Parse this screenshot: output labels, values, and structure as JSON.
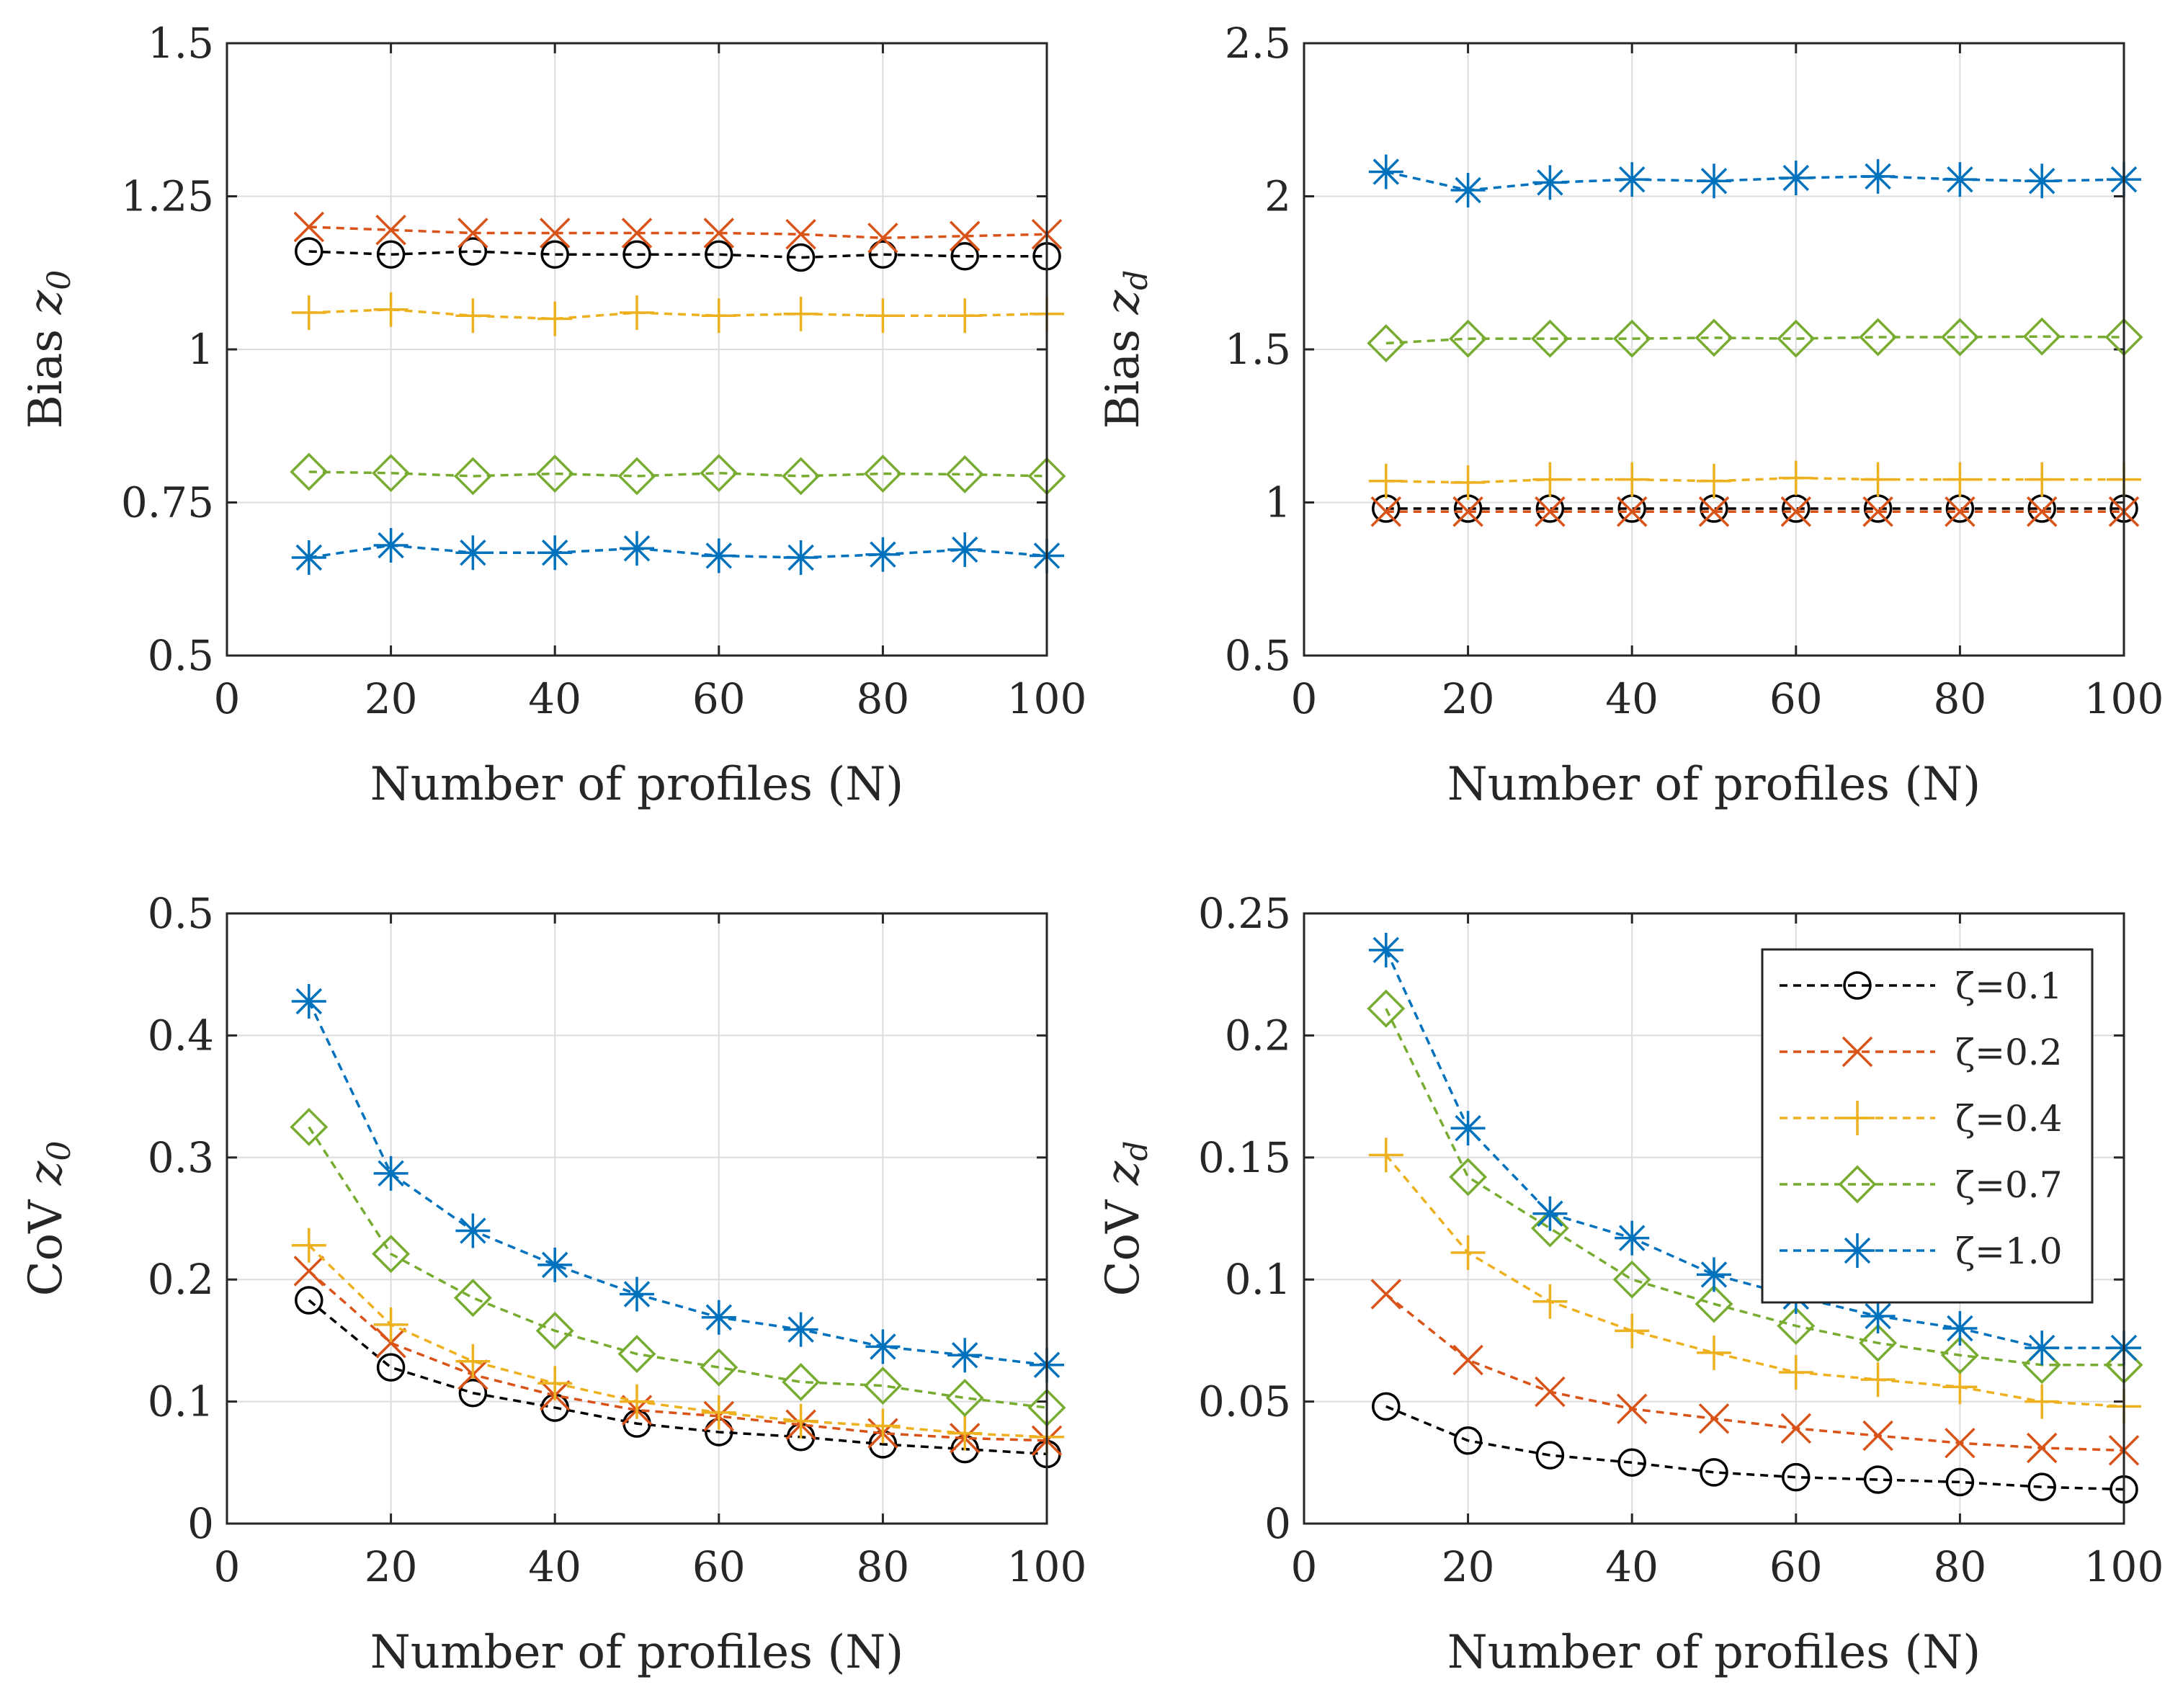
{
  "chart_data": [
    {
      "type": "line",
      "id": "bias-z0",
      "xlabel": "Number of profiles (N)",
      "ylabel": "Bias ",
      "ylabel_var": "z",
      "ylabel_sub": "0",
      "xlim": [
        0,
        100
      ],
      "ylim": [
        0.5,
        1.5
      ],
      "xticks": [
        "0",
        "20",
        "40",
        "60",
        "80",
        "100"
      ],
      "yticks": [
        "0.5",
        "0.75",
        "1",
        "1.25",
        "1.5"
      ],
      "x": [
        10,
        20,
        30,
        40,
        50,
        60,
        70,
        80,
        90,
        100
      ],
      "series": [
        {
          "name": "ζ=0.1",
          "values": [
            1.16,
            1.155,
            1.16,
            1.155,
            1.155,
            1.155,
            1.15,
            1.155,
            1.152,
            1.152
          ]
        },
        {
          "name": "ζ=0.2",
          "values": [
            1.2,
            1.195,
            1.19,
            1.19,
            1.19,
            1.19,
            1.188,
            1.182,
            1.185,
            1.188
          ]
        },
        {
          "name": "ζ=0.4",
          "values": [
            1.06,
            1.065,
            1.055,
            1.05,
            1.06,
            1.055,
            1.058,
            1.055,
            1.055,
            1.058
          ]
        },
        {
          "name": "ζ=0.7",
          "values": [
            0.8,
            0.798,
            0.793,
            0.797,
            0.793,
            0.798,
            0.793,
            0.797,
            0.796,
            0.793
          ]
        },
        {
          "name": "ζ=1.0",
          "values": [
            0.66,
            0.68,
            0.668,
            0.668,
            0.675,
            0.663,
            0.66,
            0.665,
            0.673,
            0.663
          ]
        }
      ]
    },
    {
      "type": "line",
      "id": "bias-zd",
      "xlabel": "Number of profiles (N)",
      "ylabel": "Bias ",
      "ylabel_var": "z",
      "ylabel_sub": "d",
      "xlim": [
        0,
        100
      ],
      "ylim": [
        0.5,
        2.5
      ],
      "xticks": [
        "0",
        "20",
        "40",
        "60",
        "80",
        "100"
      ],
      "yticks": [
        "0.5",
        "1",
        "1.5",
        "2",
        "2.5"
      ],
      "x": [
        10,
        20,
        30,
        40,
        50,
        60,
        70,
        80,
        90,
        100
      ],
      "series": [
        {
          "name": "ζ=0.1",
          "values": [
            0.98,
            0.98,
            0.98,
            0.98,
            0.98,
            0.98,
            0.98,
            0.98,
            0.98,
            0.98
          ]
        },
        {
          "name": "ζ=0.2",
          "values": [
            0.97,
            0.97,
            0.97,
            0.97,
            0.97,
            0.97,
            0.97,
            0.97,
            0.97,
            0.97
          ]
        },
        {
          "name": "ζ=0.4",
          "values": [
            1.07,
            1.065,
            1.075,
            1.075,
            1.07,
            1.08,
            1.075,
            1.075,
            1.075,
            1.075
          ]
        },
        {
          "name": "ζ=0.7",
          "values": [
            1.52,
            1.535,
            1.535,
            1.535,
            1.538,
            1.535,
            1.54,
            1.54,
            1.542,
            1.54
          ]
        },
        {
          "name": "ζ=1.0",
          "values": [
            2.08,
            2.02,
            2.045,
            2.055,
            2.05,
            2.06,
            2.065,
            2.055,
            2.05,
            2.055
          ]
        }
      ]
    },
    {
      "type": "line",
      "id": "cov-z0",
      "xlabel": "Number of profiles (N)",
      "ylabel": "CoV ",
      "ylabel_var": "z",
      "ylabel_sub": "0",
      "xlim": [
        0,
        100
      ],
      "ylim": [
        0,
        0.5
      ],
      "xticks": [
        "0",
        "20",
        "40",
        "60",
        "80",
        "100"
      ],
      "yticks": [
        "0",
        "0.1",
        "0.2",
        "0.3",
        "0.4",
        "0.5"
      ],
      "x": [
        10,
        20,
        30,
        40,
        50,
        60,
        70,
        80,
        90,
        100
      ],
      "series": [
        {
          "name": "ζ=0.1",
          "values": [
            0.183,
            0.128,
            0.107,
            0.095,
            0.082,
            0.075,
            0.071,
            0.065,
            0.061,
            0.057
          ]
        },
        {
          "name": "ζ=0.2",
          "values": [
            0.207,
            0.148,
            0.122,
            0.105,
            0.093,
            0.088,
            0.081,
            0.074,
            0.07,
            0.068
          ]
        },
        {
          "name": "ζ=0.4",
          "values": [
            0.228,
            0.163,
            0.133,
            0.115,
            0.1,
            0.091,
            0.084,
            0.08,
            0.074,
            0.071
          ]
        },
        {
          "name": "ζ=0.7",
          "values": [
            0.325,
            0.221,
            0.185,
            0.158,
            0.139,
            0.128,
            0.116,
            0.113,
            0.103,
            0.095
          ]
        },
        {
          "name": "ζ=1.0",
          "values": [
            0.428,
            0.287,
            0.24,
            0.212,
            0.188,
            0.169,
            0.159,
            0.145,
            0.138,
            0.13
          ]
        }
      ]
    },
    {
      "type": "line",
      "id": "cov-zd",
      "xlabel": "Number of profiles (N)",
      "ylabel": "CoV ",
      "ylabel_var": "z",
      "ylabel_sub": "d",
      "xlim": [
        0,
        100
      ],
      "ylim": [
        0,
        0.25
      ],
      "xticks": [
        "0",
        "20",
        "40",
        "60",
        "80",
        "100"
      ],
      "yticks": [
        "0",
        "0.05",
        "0.1",
        "0.15",
        "0.2",
        "0.25"
      ],
      "x": [
        10,
        20,
        30,
        40,
        50,
        60,
        70,
        80,
        90,
        100
      ],
      "legend": "top-right",
      "series": [
        {
          "name": "ζ=0.1",
          "values": [
            0.048,
            0.034,
            0.028,
            0.025,
            0.021,
            0.019,
            0.018,
            0.017,
            0.015,
            0.014
          ]
        },
        {
          "name": "ζ=0.2",
          "values": [
            0.094,
            0.067,
            0.054,
            0.047,
            0.043,
            0.039,
            0.036,
            0.033,
            0.031,
            0.03
          ]
        },
        {
          "name": "ζ=0.4",
          "values": [
            0.151,
            0.111,
            0.091,
            0.079,
            0.07,
            0.062,
            0.059,
            0.056,
            0.05,
            0.048
          ]
        },
        {
          "name": "ζ=0.7",
          "values": [
            0.211,
            0.142,
            0.121,
            0.1,
            0.09,
            0.081,
            0.074,
            0.069,
            0.065,
            0.065
          ]
        },
        {
          "name": "ζ=1.0",
          "values": [
            0.235,
            0.162,
            0.127,
            0.117,
            0.102,
            0.093,
            0.085,
            0.08,
            0.072,
            0.072
          ]
        }
      ]
    }
  ],
  "styles": {
    "ζ=0.1": {
      "color": "#000000",
      "marker": "circle"
    },
    "ζ=0.2": {
      "color": "#D95319",
      "marker": "x"
    },
    "ζ=0.4": {
      "color": "#EDB120",
      "marker": "plus"
    },
    "ζ=0.7": {
      "color": "#77AC30",
      "marker": "diamond"
    },
    "ζ=1.0": {
      "color": "#0072BD",
      "marker": "asterisk"
    }
  }
}
